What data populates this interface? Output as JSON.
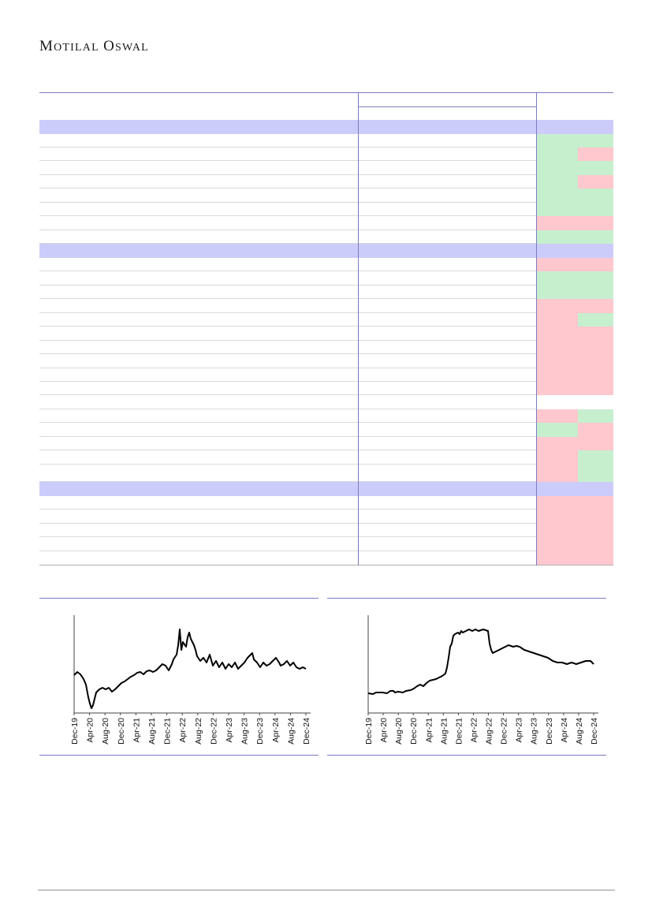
{
  "brand": {
    "name": "MOTILAL OSWAL",
    "word1_initial": "M",
    "word1_rest": "OTILAL",
    "word2_initial": "O",
    "word2_rest": "SWAL"
  },
  "colors": {
    "header_band": "#ccccfa",
    "positive": "#c6efce",
    "negative": "#ffc7ce",
    "rule": "#7b7bc4"
  },
  "table": {
    "row_count": 32,
    "section_bands": [
      0,
      9,
      26
    ],
    "flag_cells": [
      [
        null,
        null
      ],
      [
        "positive",
        "positive"
      ],
      [
        "positive",
        "negative"
      ],
      [
        "positive",
        "positive"
      ],
      [
        "positive",
        "negative"
      ],
      [
        "positive",
        "positive"
      ],
      [
        "positive",
        "positive"
      ],
      [
        "negative",
        "negative"
      ],
      [
        "positive",
        "positive"
      ],
      [
        null,
        null
      ],
      [
        "negative",
        "negative"
      ],
      [
        "positive",
        "positive"
      ],
      [
        "positive",
        "positive"
      ],
      [
        "negative",
        "negative"
      ],
      [
        "negative",
        "positive"
      ],
      [
        "negative",
        "negative"
      ],
      [
        "negative",
        "negative"
      ],
      [
        "negative",
        "negative"
      ],
      [
        "negative",
        "negative"
      ],
      [
        "negative",
        "negative"
      ],
      [
        null,
        null
      ],
      [
        "negative",
        "positive"
      ],
      [
        "positive",
        "negative"
      ],
      [
        "negative",
        "negative"
      ],
      [
        "negative",
        "positive"
      ],
      [
        "negative",
        "positive"
      ],
      [
        null,
        null
      ],
      [
        "negative",
        "negative"
      ],
      [
        "negative",
        "negative"
      ],
      [
        "negative",
        "negative"
      ],
      [
        "negative",
        "negative"
      ],
      [
        "negative",
        "negative"
      ]
    ]
  },
  "charts": {
    "left": {
      "x_ticks": [
        "Dec-19",
        "Apr-20",
        "Aug-20",
        "Dec-20",
        "Apr-21",
        "Aug-21",
        "Dec-21",
        "Apr-22",
        "Aug-22",
        "Dec-22",
        "Apr-23",
        "Aug-23",
        "Dec-23",
        "Apr-24",
        "Aug-24",
        "Dec-24"
      ]
    },
    "right": {
      "x_ticks": [
        "Dec-19",
        "Apr-20",
        "Aug-20",
        "Dec-20",
        "Apr-21",
        "Aug-21",
        "Dec-21",
        "Apr-22",
        "Aug-22",
        "Dec-22",
        "Apr-23",
        "Aug-23",
        "Dec-23",
        "Apr-24",
        "Aug-24",
        "Dec-24"
      ]
    }
  }
}
